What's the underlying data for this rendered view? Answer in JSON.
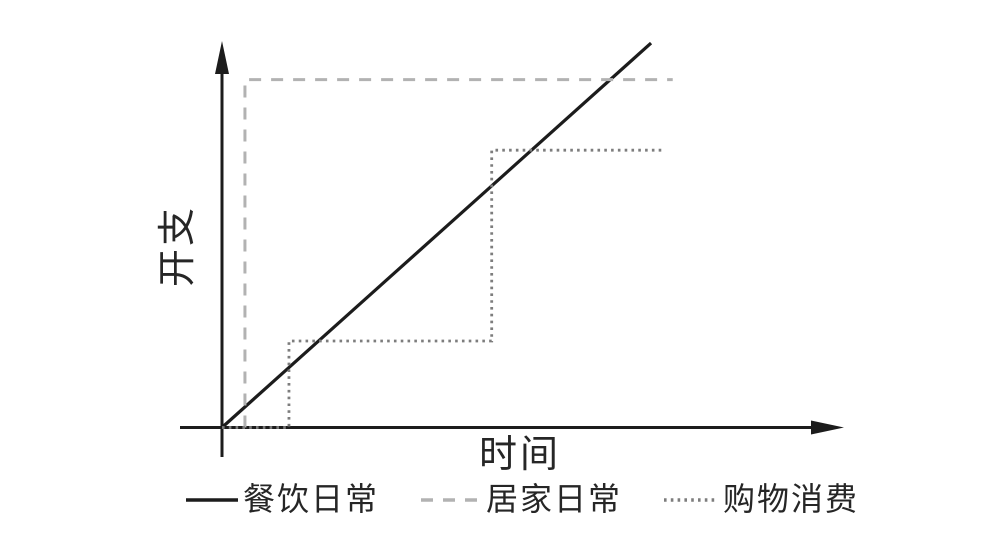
{
  "chart_data": {
    "type": "line",
    "title": "",
    "xlabel": "时间",
    "ylabel": "开支",
    "xlim": [
      0,
      100
    ],
    "ylim": [
      0,
      100
    ],
    "grid": false,
    "ticks": "none (conceptual sketch, unlabeled axes with arrowheads)",
    "legend_position": "bottom",
    "axis_color": "#1c1c1c",
    "series": [
      {
        "name": "餐饮日常",
        "style": "solid",
        "color": "#1c1c1c",
        "width": 3.2,
        "points": [
          [
            0,
            0
          ],
          [
            69.2,
            98.7
          ]
        ]
      },
      {
        "name": "居家日常",
        "style": "dashed",
        "color": "#b2b2b2",
        "width": 3,
        "points": [
          [
            3.7,
            0
          ],
          [
            3.7,
            89.3
          ],
          [
            72.7,
            89.3
          ]
        ]
      },
      {
        "name": "购物消费",
        "style": "dotted",
        "color": "#7d7d7d",
        "width": 2.8,
        "points": [
          [
            0,
            0
          ],
          [
            10.8,
            0
          ],
          [
            10.8,
            22.2
          ],
          [
            43.5,
            22.2
          ],
          [
            43.5,
            71.2
          ],
          [
            71.1,
            71.2
          ]
        ]
      }
    ]
  }
}
